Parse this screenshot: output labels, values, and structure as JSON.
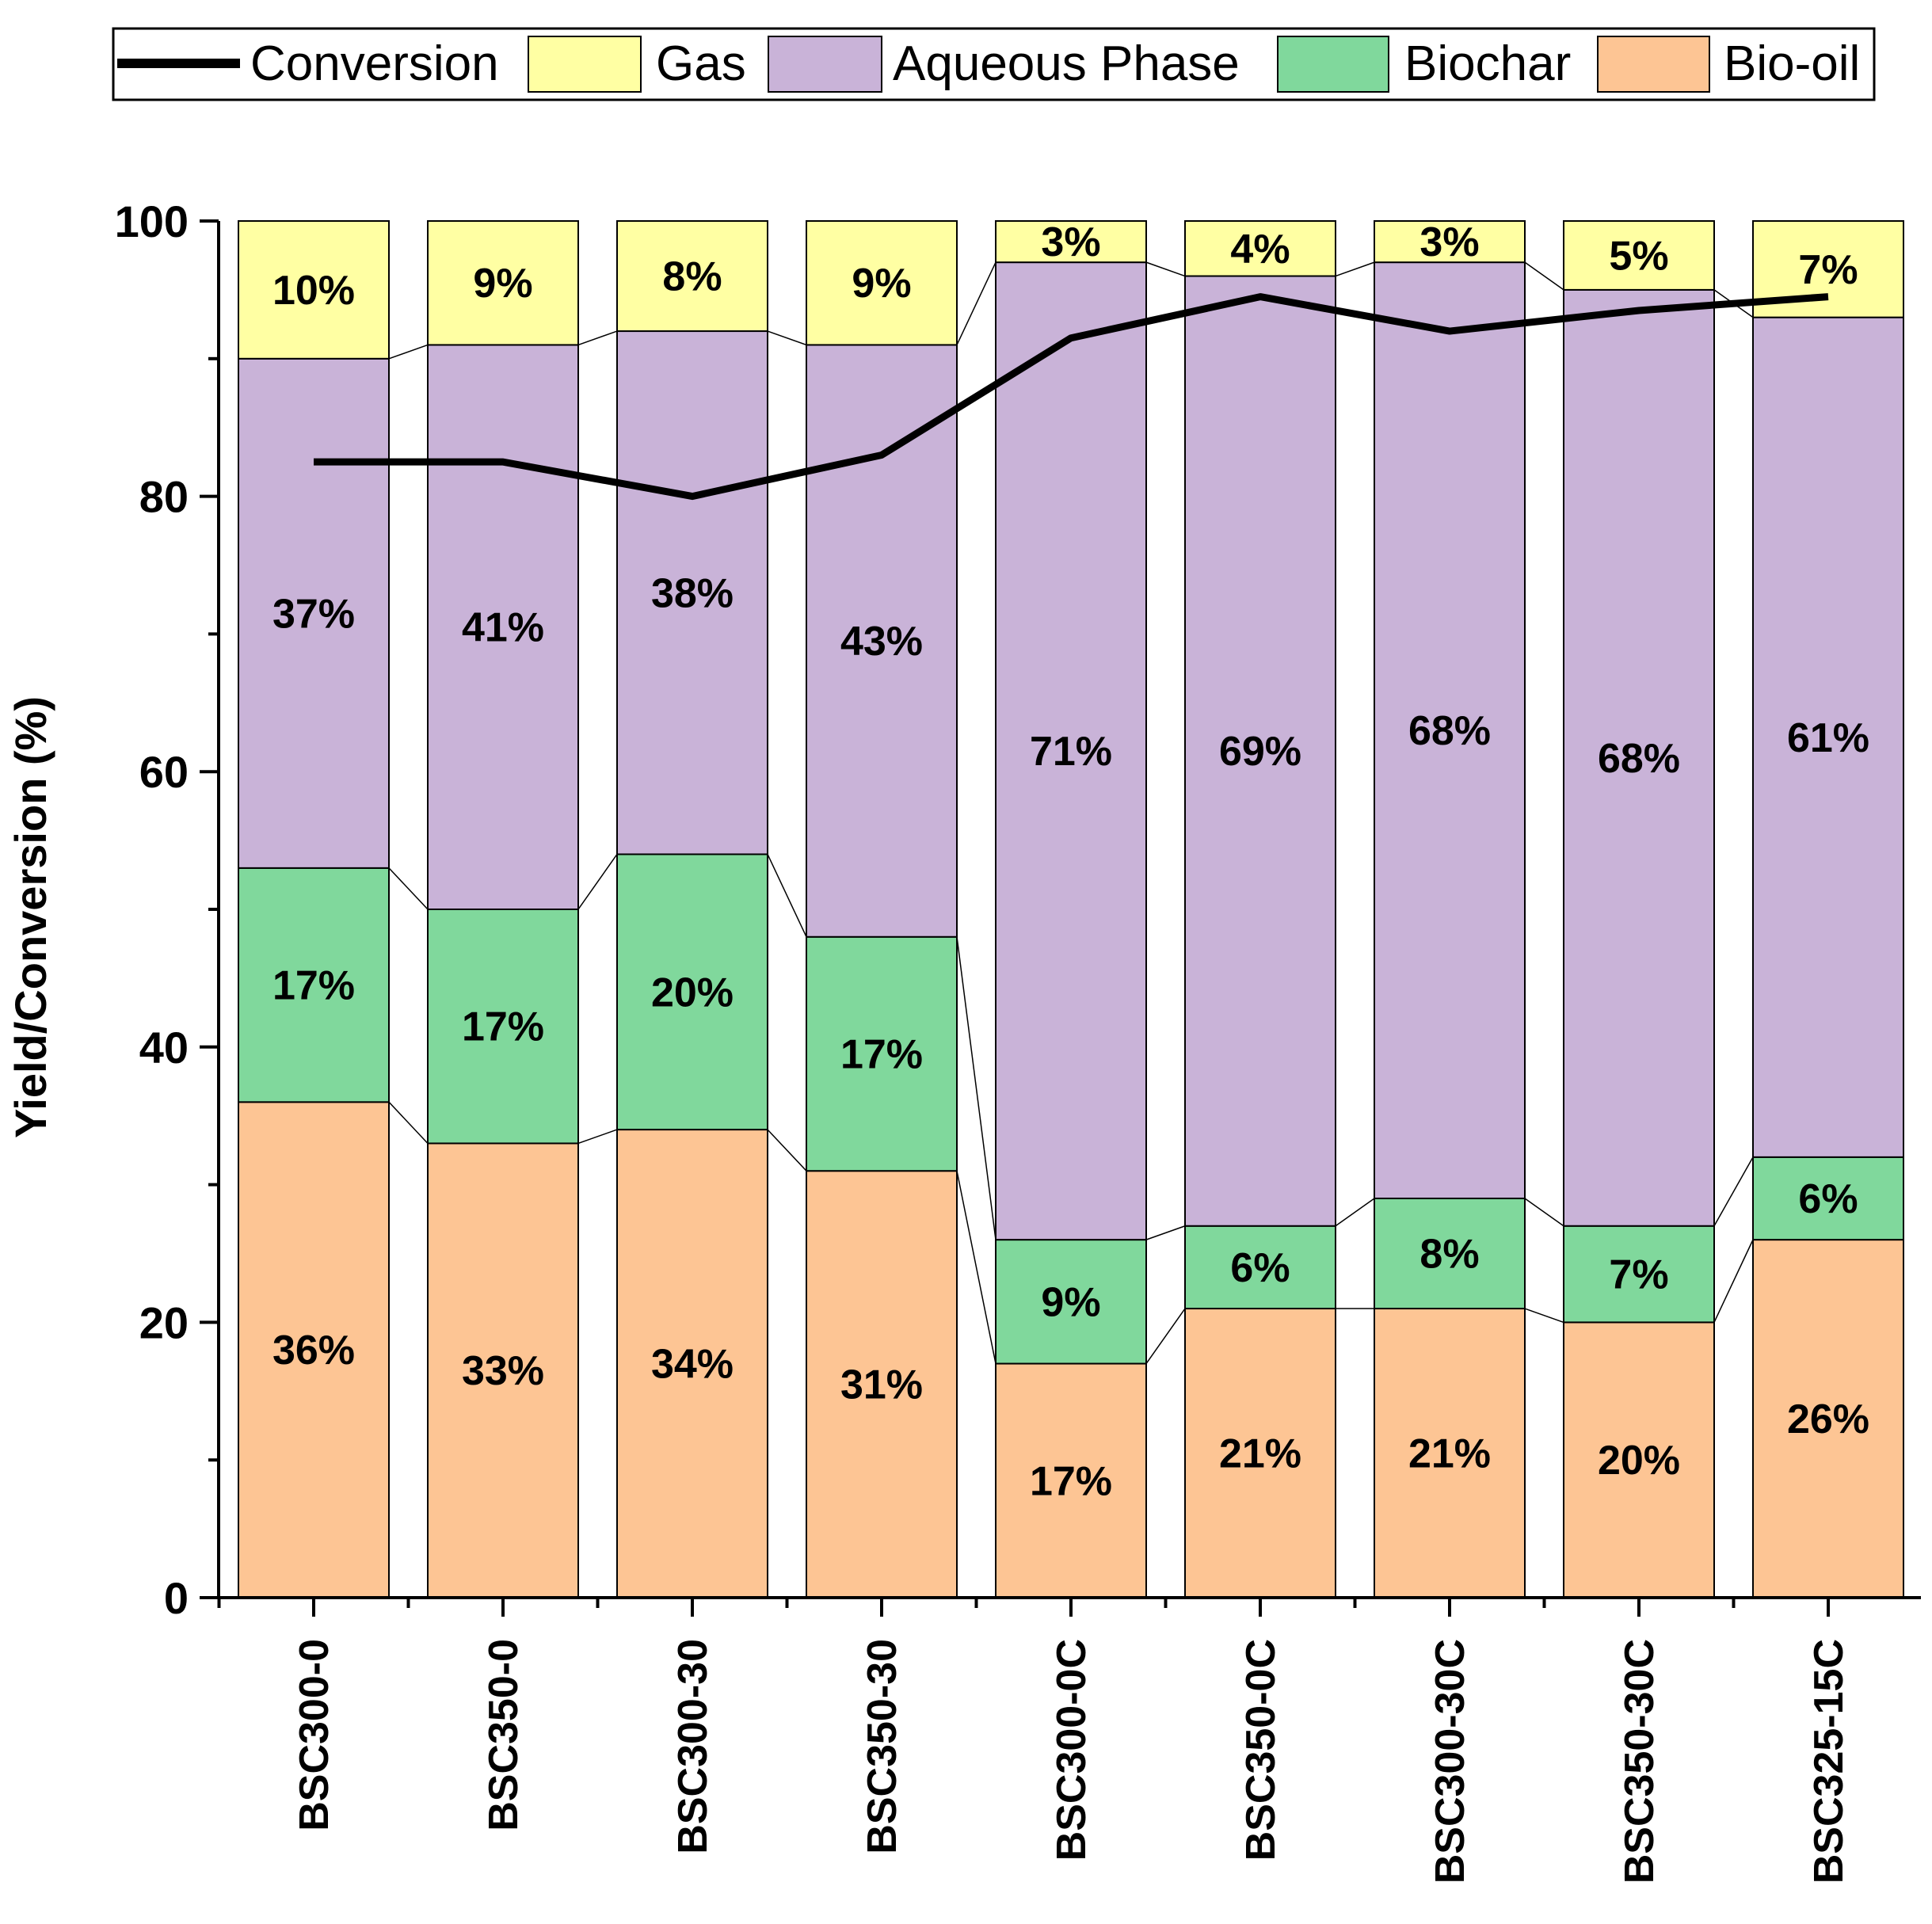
{
  "chart_data": {
    "type": "bar",
    "stacked": true,
    "title": "",
    "xlabel": "",
    "ylabel": "Yield/Conversion (%)",
    "ylim": [
      0,
      100
    ],
    "yticks": [
      0,
      20,
      40,
      60,
      80,
      100
    ],
    "categories": [
      "BSC300-0",
      "BSC350-0",
      "BSC300-30",
      "BSC350-30",
      "BSC300-0C",
      "BSC350-0C",
      "BSC300-30C",
      "BSC350-30C",
      "BSC325-15C"
    ],
    "series": [
      {
        "name": "Bio-oil",
        "color": "#fdc594",
        "values": [
          36,
          33,
          34,
          31,
          17,
          21,
          21,
          20,
          26
        ],
        "labels": [
          "36%",
          "33%",
          "34%",
          "31%",
          "17%",
          "21%",
          "21%",
          "20%",
          "26%"
        ]
      },
      {
        "name": "Biochar",
        "color": "#80d89c",
        "values": [
          17,
          17,
          20,
          17,
          9,
          6,
          8,
          7,
          6
        ],
        "labels": [
          "17%",
          "17%",
          "20%",
          "17%",
          "9%",
          "6%",
          "8%",
          "7%",
          "6%"
        ]
      },
      {
        "name": "Aqueous Phase",
        "color": "#c9b3d8",
        "values": [
          37,
          41,
          38,
          43,
          71,
          69,
          68,
          68,
          61
        ],
        "labels": [
          "37%",
          "41%",
          "38%",
          "43%",
          "71%",
          "69%",
          "68%",
          "68%",
          "61%"
        ]
      },
      {
        "name": "Gas",
        "color": "#ffffa3",
        "values": [
          10,
          9,
          8,
          9,
          3,
          4,
          3,
          5,
          7
        ],
        "labels": [
          "10%",
          "9%",
          "8%",
          "9%",
          "3%",
          "4%",
          "3%",
          "5%",
          "7%"
        ]
      }
    ],
    "line": {
      "name": "Conversion",
      "color": "#000000",
      "values": [
        82.5,
        82.5,
        80,
        83,
        91.5,
        94.5,
        92,
        93.5,
        94.5
      ]
    },
    "legend": {
      "placement": "top",
      "order": [
        "Conversion",
        "Gas",
        "Aqueous Phase",
        "Biochar",
        "Bio-oil"
      ]
    }
  }
}
